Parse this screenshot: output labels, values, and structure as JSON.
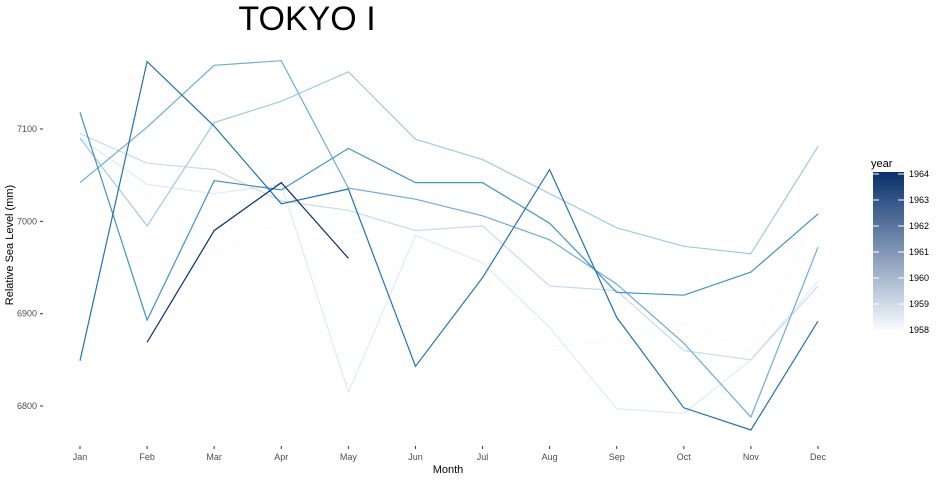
{
  "chart_data": {
    "type": "line",
    "title": "TOKYO I",
    "xlabel": "Month",
    "ylabel": "Relative Sea Level (mm)",
    "categories": [
      "Jan",
      "Feb",
      "Mar",
      "Apr",
      "May",
      "Jun",
      "Jul",
      "Aug",
      "Sep",
      "Oct",
      "Nov",
      "Dec"
    ],
    "ylim": [
      6760,
      7180
    ],
    "yticks": [
      6800,
      6900,
      7000,
      7100
    ],
    "grid": false,
    "legend": {
      "title": "year",
      "position": "right",
      "type": "colorbar",
      "labels": [
        "1964",
        "1963",
        "1962",
        "1961",
        "1960",
        "1959",
        "1958"
      ],
      "range": [
        1958,
        1964
      ],
      "color_low": "#f7fbff",
      "color_high": "#08306b"
    },
    "series": [
      {
        "year": 1958,
        "color": "#f7fbff",
        "values": [
          7080,
          7030,
          6965,
          7000,
          7010,
          6990,
          6995,
          6865,
          6870,
          6890,
          6860,
          7010
        ]
      },
      {
        "year": 1959,
        "color": "#deebf7",
        "values": [
          7090,
          7040,
          7030,
          7040,
          6815,
          6985,
          6955,
          6885,
          6797,
          6792,
          6850,
          6935
        ]
      },
      {
        "year": 1960,
        "color": "#c6dbef",
        "values": [
          7095,
          7063,
          7056,
          7022,
          7012,
          6990,
          6995,
          6930,
          6925,
          6860,
          6850,
          6930
        ]
      },
      {
        "year": 1960.5,
        "color": "#9ecae1",
        "values": [
          7090,
          6995,
          7107,
          7130,
          7162,
          7089,
          7067,
          7030,
          6993,
          6973,
          6965,
          7081
        ]
      },
      {
        "year": 1961,
        "color": "#6baed6",
        "values": [
          7042,
          7102,
          7169,
          7174,
          7036,
          7024,
          7006,
          6980,
          6932,
          6868,
          6788,
          6972
        ]
      },
      {
        "year": 1962,
        "color": "#4292c6",
        "values": [
          7118,
          6893,
          7044,
          7034,
          7079,
          7042,
          7042,
          6998,
          6923,
          6920,
          6945,
          7008
        ]
      },
      {
        "year": 1963,
        "color": "#2171b5",
        "values": [
          6849,
          7173,
          7103,
          7019,
          7035,
          6843,
          6939,
          7056,
          6896,
          6798,
          6774,
          6892
        ]
      },
      {
        "year": 1964,
        "color": "#08306b",
        "values": [
          null,
          6869,
          6990,
          7042,
          6960,
          null,
          null,
          null,
          null,
          null,
          null,
          null
        ]
      }
    ]
  }
}
